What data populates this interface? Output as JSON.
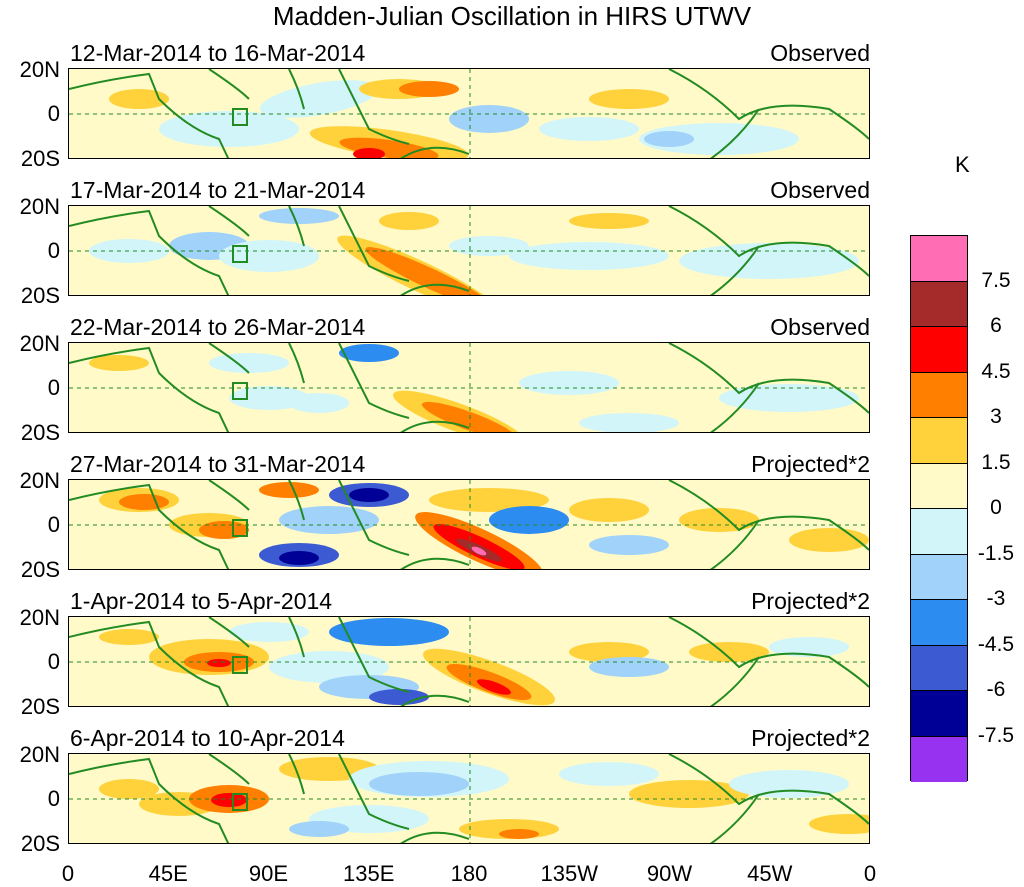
{
  "title": "Madden-Julian Oscillation in HIRS UTWV",
  "panels": [
    {
      "date": "12-Mar-2014 to 16-Mar-2014",
      "type": "Observed"
    },
    {
      "date": "17-Mar-2014 to 21-Mar-2014",
      "type": "Observed"
    },
    {
      "date": "22-Mar-2014 to 26-Mar-2014",
      "type": "Observed"
    },
    {
      "date": "27-Mar-2014 to 31-Mar-2014",
      "type": "Projected*2"
    },
    {
      "date": "1-Apr-2014 to 5-Apr-2014",
      "type": "Projected*2"
    },
    {
      "date": "6-Apr-2014 to 10-Apr-2014",
      "type": "Projected*2"
    }
  ],
  "y_labels": [
    "20N",
    "0",
    "20S"
  ],
  "x_labels": [
    "0",
    "45E",
    "90E",
    "135E",
    "180",
    "135W",
    "90W",
    "45W",
    "0"
  ],
  "colorbar": {
    "unit": "K",
    "labels": [
      "7.5",
      "6",
      "4.5",
      "3",
      "1.5",
      "0",
      "-1.5",
      "-3",
      "-4.5",
      "-6",
      "-7.5"
    ],
    "colors": [
      "#ff6eb4",
      "#a52a2a",
      "#ff0000",
      "#ff7f00",
      "#ffd23c",
      "#fffac8",
      "#d2f5fa",
      "#a0d2fa",
      "#2d8cf0",
      "#3c5ad2",
      "#000096",
      "#9632f0"
    ]
  },
  "map_colors": {
    "land_outline": "#228b22",
    "box": "#228b22",
    "grid": "#228b22"
  }
}
